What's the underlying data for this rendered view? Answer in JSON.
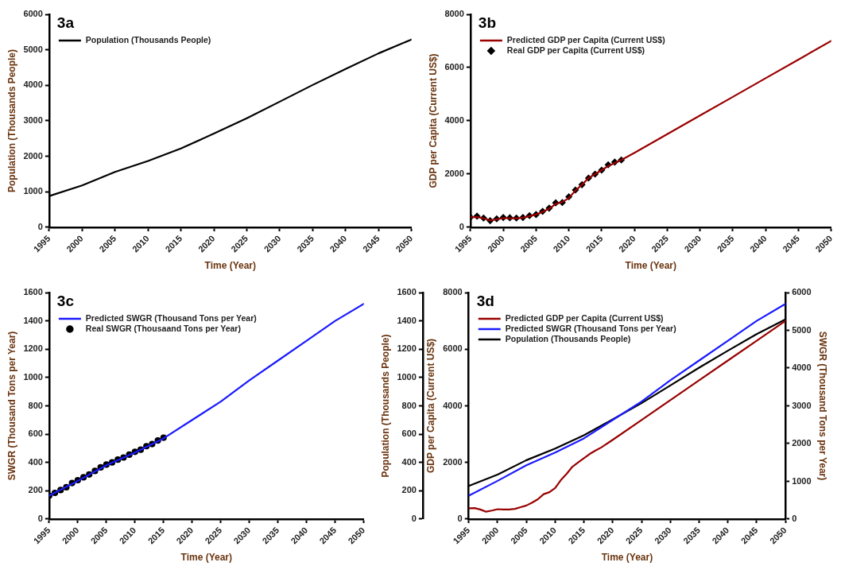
{
  "chart_data": [
    {
      "type": "line",
      "title": "3a",
      "xlabel": "Time (Year)",
      "ylabel": "Population (Thousands People)",
      "xlim": [
        1995,
        2050
      ],
      "xticks": [
        1995,
        2000,
        2005,
        2010,
        2015,
        2020,
        2025,
        2030,
        2035,
        2040,
        2045,
        2050
      ],
      "ylim": [
        0,
        6000
      ],
      "yticks": [
        0,
        1000,
        2000,
        3000,
        4000,
        5000,
        6000
      ],
      "legend": "top left",
      "marker": "none",
      "series": [
        {
          "name": "Population (Thousands People)",
          "type": "line",
          "color": "#000000",
          "x": [
            1995,
            2000,
            2005,
            2010,
            2015,
            2020,
            2025,
            2030,
            2035,
            2040,
            2045,
            2050
          ],
          "values": [
            880,
            1180,
            1560,
            1870,
            2220,
            2640,
            3070,
            3540,
            4010,
            4460,
            4900,
            5290
          ]
        }
      ]
    },
    {
      "type": "line",
      "title": "3b",
      "xlabel": "Time (Year)",
      "ylabel": "GDP per Capita (Current US$)",
      "xlim": [
        1995,
        2050
      ],
      "xticks": [
        1995,
        2000,
        2005,
        2010,
        2015,
        2020,
        2025,
        2030,
        2035,
        2040,
        2045,
        2050
      ],
      "ylim": [
        0,
        8000
      ],
      "yticks": [
        0,
        2000,
        4000,
        6000,
        8000
      ],
      "legend": "top left",
      "marker": "none",
      "series": [
        {
          "name": "Predicted GDP per Capita (Current US$)",
          "type": "line",
          "color": "#990000",
          "x": [
            1995,
            1996,
            1997,
            1998,
            1999,
            2000,
            2001,
            2002,
            2003,
            2004,
            2005,
            2006,
            2007,
            2008,
            2009,
            2010,
            2011,
            2012,
            2013,
            2014,
            2015,
            2016,
            2017,
            2018,
            2020,
            2025,
            2030,
            2035,
            2040,
            2045,
            2050
          ],
          "values": [
            380,
            390,
            340,
            260,
            300,
            350,
            340,
            340,
            360,
            420,
            480,
            580,
            700,
            880,
            950,
            1100,
            1380,
            1600,
            1850,
            2000,
            2150,
            2300,
            2420,
            2530,
            2800,
            3500,
            4200,
            4900,
            5600,
            6300,
            7000
          ]
        },
        {
          "name": "Real GDP per Capita (Current US$)",
          "type": "scatter",
          "marker": "diamond",
          "color": "#000000",
          "x": [
            1995,
            1996,
            1997,
            1998,
            1999,
            2000,
            2001,
            2002,
            2003,
            2004,
            2005,
            2006,
            2007,
            2008,
            2009,
            2010,
            2011,
            2012,
            2013,
            2014,
            2015,
            2016,
            2017,
            2018
          ],
          "values": [
            380,
            420,
            350,
            250,
            320,
            370,
            360,
            350,
            370,
            440,
            480,
            600,
            720,
            920,
            930,
            1150,
            1400,
            1600,
            1850,
            2000,
            2150,
            2350,
            2450,
            2530
          ]
        }
      ]
    },
    {
      "type": "line",
      "title": "3c",
      "xlabel": "Time (Year)",
      "ylabel": "SWGR (Thousand Tons per Year)",
      "xlim": [
        1995,
        2050
      ],
      "xticks": [
        1995,
        2000,
        2005,
        2010,
        2015,
        2020,
        2025,
        2030,
        2035,
        2040,
        2045,
        2050
      ],
      "ylim": [
        0,
        1600
      ],
      "yticks": [
        0,
        200,
        400,
        600,
        800,
        1000,
        1200,
        1400,
        1600
      ],
      "legend": "top left",
      "marker": "none",
      "series": [
        {
          "name": "Predicted SWGR (Thousand Tons per Year)",
          "type": "line",
          "color": "#1a1aff",
          "x": [
            1995,
            2000,
            2005,
            2010,
            2015,
            2020,
            2025,
            2030,
            2035,
            2040,
            2045,
            2050
          ],
          "values": [
            165,
            270,
            380,
            470,
            570,
            700,
            830,
            980,
            1120,
            1260,
            1400,
            1520
          ]
        },
        {
          "name": "Real SWGR (Thousaand Tons per Year)",
          "type": "scatter",
          "marker": "circle",
          "color": "#000000",
          "x": [
            1995,
            1996,
            1997,
            1998,
            1999,
            2000,
            2001,
            2002,
            2003,
            2004,
            2005,
            2006,
            2007,
            2008,
            2009,
            2010,
            2011,
            2012,
            2013,
            2014,
            2015
          ],
          "values": [
            165,
            185,
            205,
            225,
            255,
            275,
            295,
            315,
            340,
            365,
            385,
            400,
            420,
            435,
            455,
            475,
            490,
            515,
            530,
            555,
            575
          ]
        }
      ]
    },
    {
      "type": "line",
      "title": "3d",
      "xlabel": "Time (Year)",
      "ylabel": "GDP per Capita (Current US$)",
      "y2label": "SWGR (Thousand Tons per Year)",
      "y3label": "Population (Thousands People)",
      "xlim": [
        1995,
        2050
      ],
      "xticks": [
        1995,
        2000,
        2005,
        2010,
        2015,
        2020,
        2025,
        2030,
        2035,
        2040,
        2045,
        2050
      ],
      "ylim": [
        0,
        8000
      ],
      "yticks": [
        0,
        2000,
        4000,
        6000,
        8000
      ],
      "y2lim": [
        0,
        6000
      ],
      "y2ticks": [
        0,
        1000,
        2000,
        3000,
        4000,
        5000,
        6000
      ],
      "y3lim": [
        0,
        1600
      ],
      "y3ticks": [
        0,
        200,
        400,
        600,
        800,
        1000,
        1200,
        1400,
        1600
      ],
      "legend": "top left",
      "marker": "none",
      "series": [
        {
          "name": "Predicted GDP per Capita (Current US$)",
          "type": "line",
          "color": "#990000",
          "x": [
            1995,
            1996,
            1997,
            1998,
            1999,
            2000,
            2001,
            2002,
            2003,
            2004,
            2005,
            2006,
            2007,
            2008,
            2009,
            2010,
            2011,
            2012,
            2013,
            2014,
            2015,
            2016,
            2017,
            2018,
            2020,
            2025,
            2030,
            2035,
            2040,
            2045,
            2050
          ],
          "values": [
            380,
            390,
            340,
            260,
            300,
            350,
            340,
            340,
            360,
            420,
            480,
            580,
            700,
            880,
            950,
            1100,
            1380,
            1600,
            1850,
            2000,
            2150,
            2300,
            2420,
            2530,
            2800,
            3500,
            4200,
            4900,
            5600,
            6300,
            7000
          ]
        },
        {
          "name": "Predicted SWGR (Thousand Tons per Year)",
          "type": "line",
          "axis": "y3",
          "color": "#1a1aff",
          "x": [
            1995,
            2000,
            2005,
            2010,
            2015,
            2020,
            2025,
            2030,
            2035,
            2040,
            2045,
            2050
          ],
          "values": [
            165,
            270,
            380,
            470,
            570,
            700,
            830,
            980,
            1120,
            1260,
            1400,
            1520
          ]
        },
        {
          "name": "Population (Thousands People)",
          "type": "line",
          "axis": "y2",
          "color": "#000000",
          "x": [
            1995,
            2000,
            2005,
            2010,
            2015,
            2020,
            2025,
            2030,
            2035,
            2040,
            2045,
            2050
          ],
          "values": [
            880,
            1180,
            1560,
            1870,
            2220,
            2640,
            3070,
            3540,
            4010,
            4460,
            4900,
            5290
          ]
        }
      ]
    }
  ]
}
